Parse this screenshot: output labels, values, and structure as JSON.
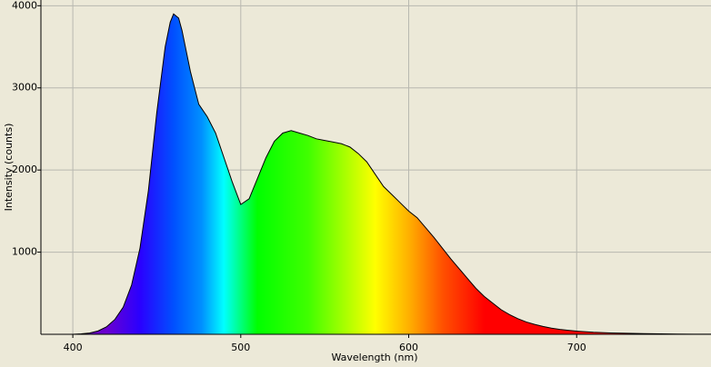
{
  "chart_data": {
    "type": "line",
    "x_label": "Wavelength (nm)",
    "y_label": "Intensity (counts)",
    "xlim": [
      381,
      780
    ],
    "ylim": [
      0,
      4070
    ],
    "xticks": [
      400,
      500,
      600,
      700
    ],
    "yticks": [
      1000,
      2000,
      3000,
      4000
    ],
    "grid": true,
    "line_color": "#000000",
    "background": "#ece9d8",
    "series": [
      {
        "name": "Intensity",
        "x": [
          381,
          390,
          400,
          405,
          410,
          415,
          420,
          425,
          430,
          435,
          440,
          445,
          450,
          455,
          458,
          460,
          463,
          465,
          470,
          475,
          480,
          485,
          490,
          495,
          500,
          505,
          510,
          515,
          520,
          525,
          530,
          535,
          540,
          545,
          550,
          555,
          560,
          565,
          570,
          575,
          580,
          585,
          590,
          595,
          600,
          605,
          610,
          615,
          620,
          625,
          630,
          635,
          640,
          645,
          650,
          655,
          660,
          665,
          670,
          675,
          680,
          685,
          690,
          695,
          700,
          710,
          720,
          730,
          740,
          750,
          760,
          770,
          780
        ],
        "values": [
          0,
          0,
          0,
          5,
          15,
          40,
          90,
          180,
          330,
          600,
          1050,
          1750,
          2700,
          3500,
          3800,
          3900,
          3850,
          3700,
          3200,
          2800,
          2650,
          2450,
          2150,
          1850,
          1580,
          1650,
          1900,
          2150,
          2350,
          2450,
          2480,
          2450,
          2420,
          2380,
          2360,
          2340,
          2320,
          2280,
          2200,
          2100,
          1950,
          1800,
          1700,
          1600,
          1500,
          1420,
          1300,
          1180,
          1050,
          920,
          800,
          680,
          560,
          460,
          380,
          300,
          240,
          190,
          150,
          120,
          95,
          75,
          60,
          48,
          38,
          25,
          17,
          12,
          8,
          5,
          3,
          2,
          1
        ]
      }
    ]
  }
}
